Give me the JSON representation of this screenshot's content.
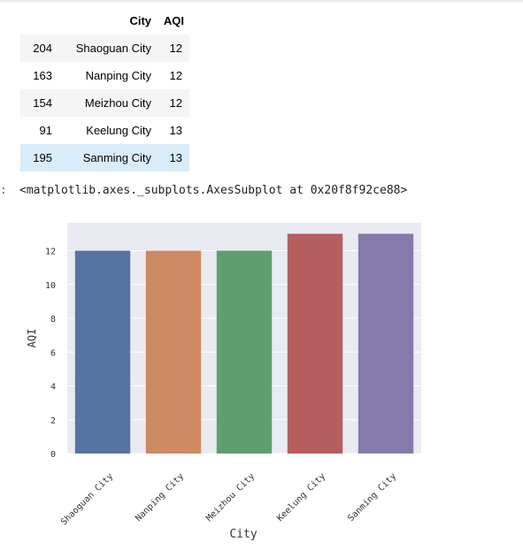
{
  "table": {
    "columns": [
      "",
      "City",
      "AQI"
    ],
    "rows": [
      {
        "index": "204",
        "city": "Shaoguan City",
        "aqi": "12"
      },
      {
        "index": "163",
        "city": "Nanping City",
        "aqi": "12"
      },
      {
        "index": "154",
        "city": "Meizhou City",
        "aqi": "12"
      },
      {
        "index": "91",
        "city": "Keelung City",
        "aqi": "13"
      },
      {
        "index": "195",
        "city": "Sanming City",
        "aqi": "13"
      }
    ]
  },
  "output": {
    "prompt": ":",
    "text": "<matplotlib.axes._subplots.AxesSubplot at 0x20f8f92ce88>"
  },
  "chart_data": {
    "type": "bar",
    "categories": [
      "Shaoguan City",
      "Nanping City",
      "Meizhou City",
      "Keelung City",
      "Sanming City"
    ],
    "values": [
      12,
      12,
      12,
      13,
      13
    ],
    "colors": [
      "#5874a5",
      "#cd8963",
      "#5f9e6f",
      "#b65d60",
      "#867aaa"
    ],
    "xlabel": "City",
    "ylabel": "AQI",
    "ylim": [
      0,
      13.65
    ],
    "yticks": [
      0,
      2,
      4,
      6,
      8,
      10,
      12
    ],
    "grid": true,
    "background": "#eaeaf2"
  }
}
